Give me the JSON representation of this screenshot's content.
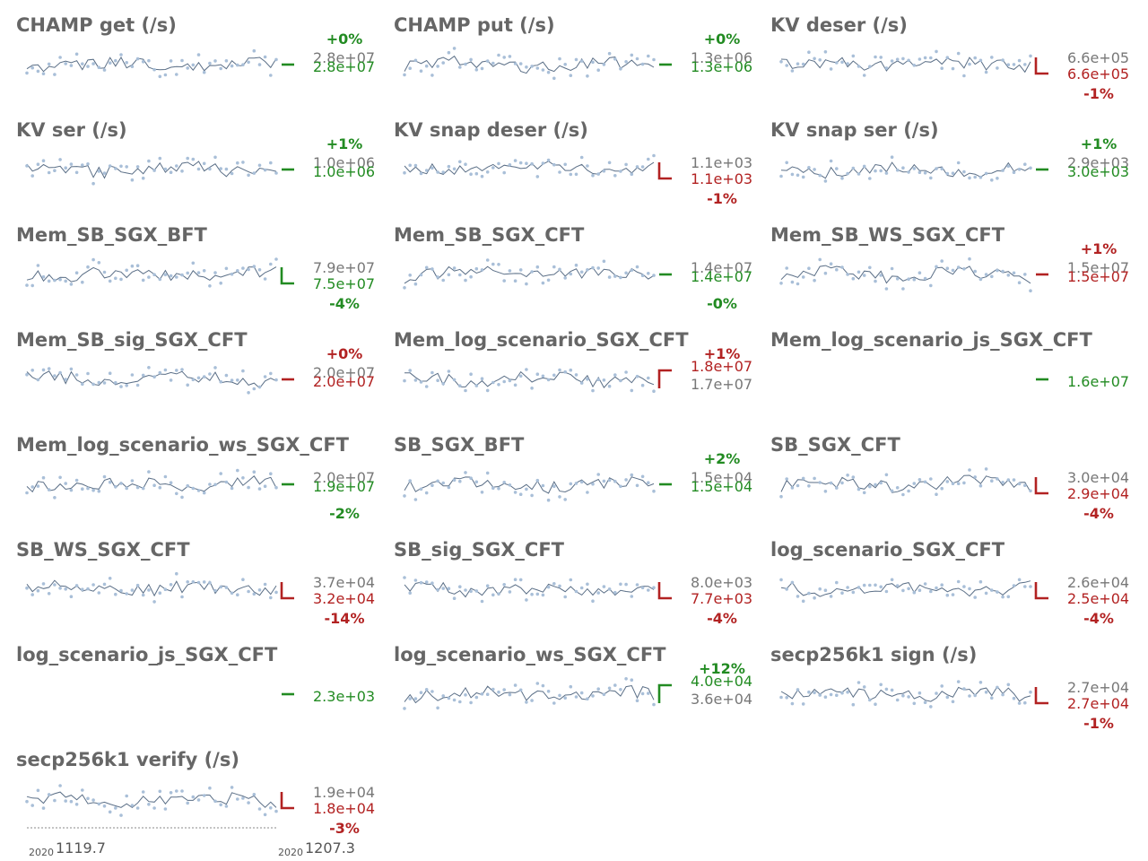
{
  "colors": {
    "title": "#666666",
    "good": "#228b22",
    "bad": "#b22222",
    "neutral": "#777777",
    "line": "#5a6e86",
    "point": "#a9bfd8",
    "axis": "#888888"
  },
  "footer": {
    "left_year": "2020",
    "left_value": "1119.7",
    "right_year": "2020",
    "right_value": "1207.3"
  },
  "chart_data": [
    {
      "type": "line",
      "title": "CHAMP get (/s)",
      "pct": "+0%",
      "pct_pos": "above",
      "new_label": "2.8e+07",
      "old_label": "2.8e+07",
      "trend": "good",
      "step": "flat",
      "seed": 1
    },
    {
      "type": "line",
      "title": "CHAMP put (/s)",
      "pct": "+0%",
      "pct_pos": "above",
      "new_label": "1.3e+06",
      "old_label": "1.3e+06",
      "trend": "good",
      "step": "flat",
      "seed": 2
    },
    {
      "type": "line",
      "title": "KV deser (/s)",
      "pct": "-1%",
      "pct_pos": "below",
      "new_label": "6.6e+05",
      "old_label": "6.6e+05",
      "trend": "bad",
      "step": "down",
      "seed": 3
    },
    {
      "type": "line",
      "title": "KV ser (/s)",
      "pct": "+1%",
      "pct_pos": "above",
      "new_label": "1.0e+06",
      "old_label": "1.0e+06",
      "trend": "good",
      "step": "flat",
      "seed": 4
    },
    {
      "type": "line",
      "title": "KV snap deser (/s)",
      "pct": "-1%",
      "pct_pos": "below",
      "new_label": "1.1e+03",
      "old_label": "1.1e+03",
      "trend": "bad",
      "step": "down",
      "seed": 5
    },
    {
      "type": "line",
      "title": "KV snap ser (/s)",
      "pct": "+1%",
      "pct_pos": "above",
      "new_label": "3.0e+03",
      "old_label": "2.9e+03",
      "trend": "good",
      "step": "flat",
      "seed": 6
    },
    {
      "type": "line",
      "title": "Mem_SB_SGX_BFT",
      "pct": "-4%",
      "pct_pos": "below",
      "new_label": "7.5e+07",
      "old_label": "7.9e+07",
      "trend": "good",
      "step": "down",
      "seed": 7
    },
    {
      "type": "line",
      "title": "Mem_SB_SGX_CFT",
      "pct": "-0%",
      "pct_pos": "below",
      "new_label": "1.4e+07",
      "old_label": "1.4e+07",
      "trend": "good",
      "step": "flat",
      "seed": 8
    },
    {
      "type": "line",
      "title": "Mem_SB_WS_SGX_CFT",
      "pct": "+1%",
      "pct_pos": "above",
      "new_label": "1.5e+07",
      "old_label": "1.5e+07",
      "trend": "bad",
      "step": "flat",
      "seed": 9
    },
    {
      "type": "line",
      "title": "Mem_SB_sig_SGX_CFT",
      "pct": "+0%",
      "pct_pos": "above",
      "new_label": "2.0e+07",
      "old_label": "2.0e+07",
      "trend": "bad",
      "step": "flat",
      "seed": 10
    },
    {
      "type": "line",
      "title": "Mem_log_scenario_SGX_CFT",
      "pct": "+1%",
      "pct_pos": "above",
      "new_label": "1.8e+07",
      "old_label": "1.7e+07",
      "trend": "bad",
      "step": "up",
      "seed": 11
    },
    {
      "type": "line",
      "title": "Mem_log_scenario_js_SGX_CFT",
      "pct": "",
      "pct_pos": "above",
      "new_label": "1.6e+07",
      "old_label": "",
      "trend": "good",
      "step": "flat",
      "seed": 12,
      "empty": true
    },
    {
      "type": "line",
      "title": "Mem_log_scenario_ws_SGX_CFT",
      "pct": "-2%",
      "pct_pos": "below",
      "new_label": "1.9e+07",
      "old_label": "2.0e+07",
      "trend": "good",
      "step": "flat",
      "seed": 13
    },
    {
      "type": "line",
      "title": "SB_SGX_BFT",
      "pct": "+2%",
      "pct_pos": "above",
      "new_label": "1.5e+04",
      "old_label": "1.5e+04",
      "trend": "good",
      "step": "flat",
      "seed": 14
    },
    {
      "type": "line",
      "title": "SB_SGX_CFT",
      "pct": "-4%",
      "pct_pos": "below",
      "new_label": "2.9e+04",
      "old_label": "3.0e+04",
      "trend": "bad",
      "step": "down",
      "seed": 15
    },
    {
      "type": "line",
      "title": "SB_WS_SGX_CFT",
      "pct": "-14%",
      "pct_pos": "below",
      "new_label": "3.2e+04",
      "old_label": "3.7e+04",
      "trend": "bad",
      "step": "down",
      "seed": 16
    },
    {
      "type": "line",
      "title": "SB_sig_SGX_CFT",
      "pct": "-4%",
      "pct_pos": "below",
      "new_label": "7.7e+03",
      "old_label": "8.0e+03",
      "trend": "bad",
      "step": "down",
      "seed": 17
    },
    {
      "type": "line",
      "title": "log_scenario_SGX_CFT",
      "pct": "-4%",
      "pct_pos": "below",
      "new_label": "2.5e+04",
      "old_label": "2.6e+04",
      "trend": "bad",
      "step": "down",
      "seed": 18
    },
    {
      "type": "line",
      "title": "log_scenario_js_SGX_CFT",
      "pct": "",
      "pct_pos": "above",
      "new_label": "2.3e+03",
      "old_label": "",
      "trend": "good",
      "step": "flat",
      "seed": 19,
      "empty": true
    },
    {
      "type": "line",
      "title": "log_scenario_ws_SGX_CFT",
      "pct": "+12%",
      "pct_pos": "above",
      "new_label": "4.0e+04",
      "old_label": "3.6e+04",
      "trend": "good",
      "step": "up",
      "seed": 20
    },
    {
      "type": "line",
      "title": "secp256k1 sign (/s)",
      "pct": "-1%",
      "pct_pos": "below",
      "new_label": "2.7e+04",
      "old_label": "2.7e+04",
      "trend": "bad",
      "step": "down",
      "seed": 21
    },
    {
      "type": "line",
      "title": "secp256k1 verify (/s)",
      "pct": "-3%",
      "pct_pos": "below",
      "new_label": "1.8e+04",
      "old_label": "1.9e+04",
      "trend": "bad",
      "step": "down",
      "seed": 22
    }
  ]
}
